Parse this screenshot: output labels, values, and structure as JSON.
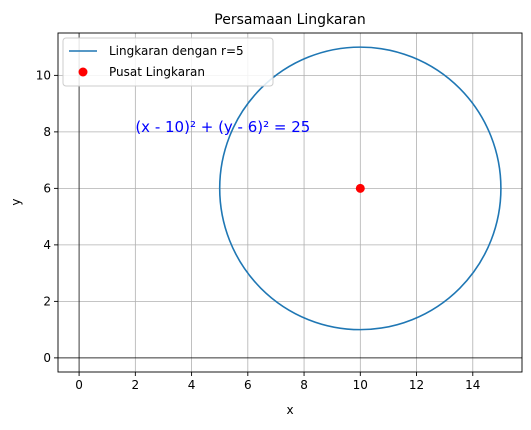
{
  "chart_data": {
    "type": "line",
    "title": "Persamaan Lingkaran",
    "xlabel": "x",
    "ylabel": "y",
    "xlim": [
      -0.75,
      15.75
    ],
    "ylim": [
      -0.5,
      11.5
    ],
    "xticks": [
      0,
      2,
      4,
      6,
      8,
      10,
      12,
      14
    ],
    "yticks": [
      0,
      2,
      4,
      6,
      8,
      10
    ],
    "grid": true,
    "axis_lines": {
      "x": 0,
      "y": 0
    },
    "series": [
      {
        "name": "Lingkaran dengan r=5",
        "kind": "circle",
        "center": [
          10,
          6
        ],
        "radius": 5,
        "color": "#1f77b4"
      },
      {
        "name": "Pusat Lingkaran",
        "kind": "scatter",
        "points": [
          [
            10,
            6
          ]
        ],
        "color": "#ff0000"
      }
    ],
    "annotations": [
      {
        "text": "(x - 10)² + (y - 6)² = 25",
        "x": 2,
        "y": 8,
        "color": "#0000ff"
      }
    ],
    "legend": {
      "placement": "top-left",
      "entries": [
        "Lingkaran dengan r=5",
        "Pusat Lingkaran"
      ]
    }
  }
}
